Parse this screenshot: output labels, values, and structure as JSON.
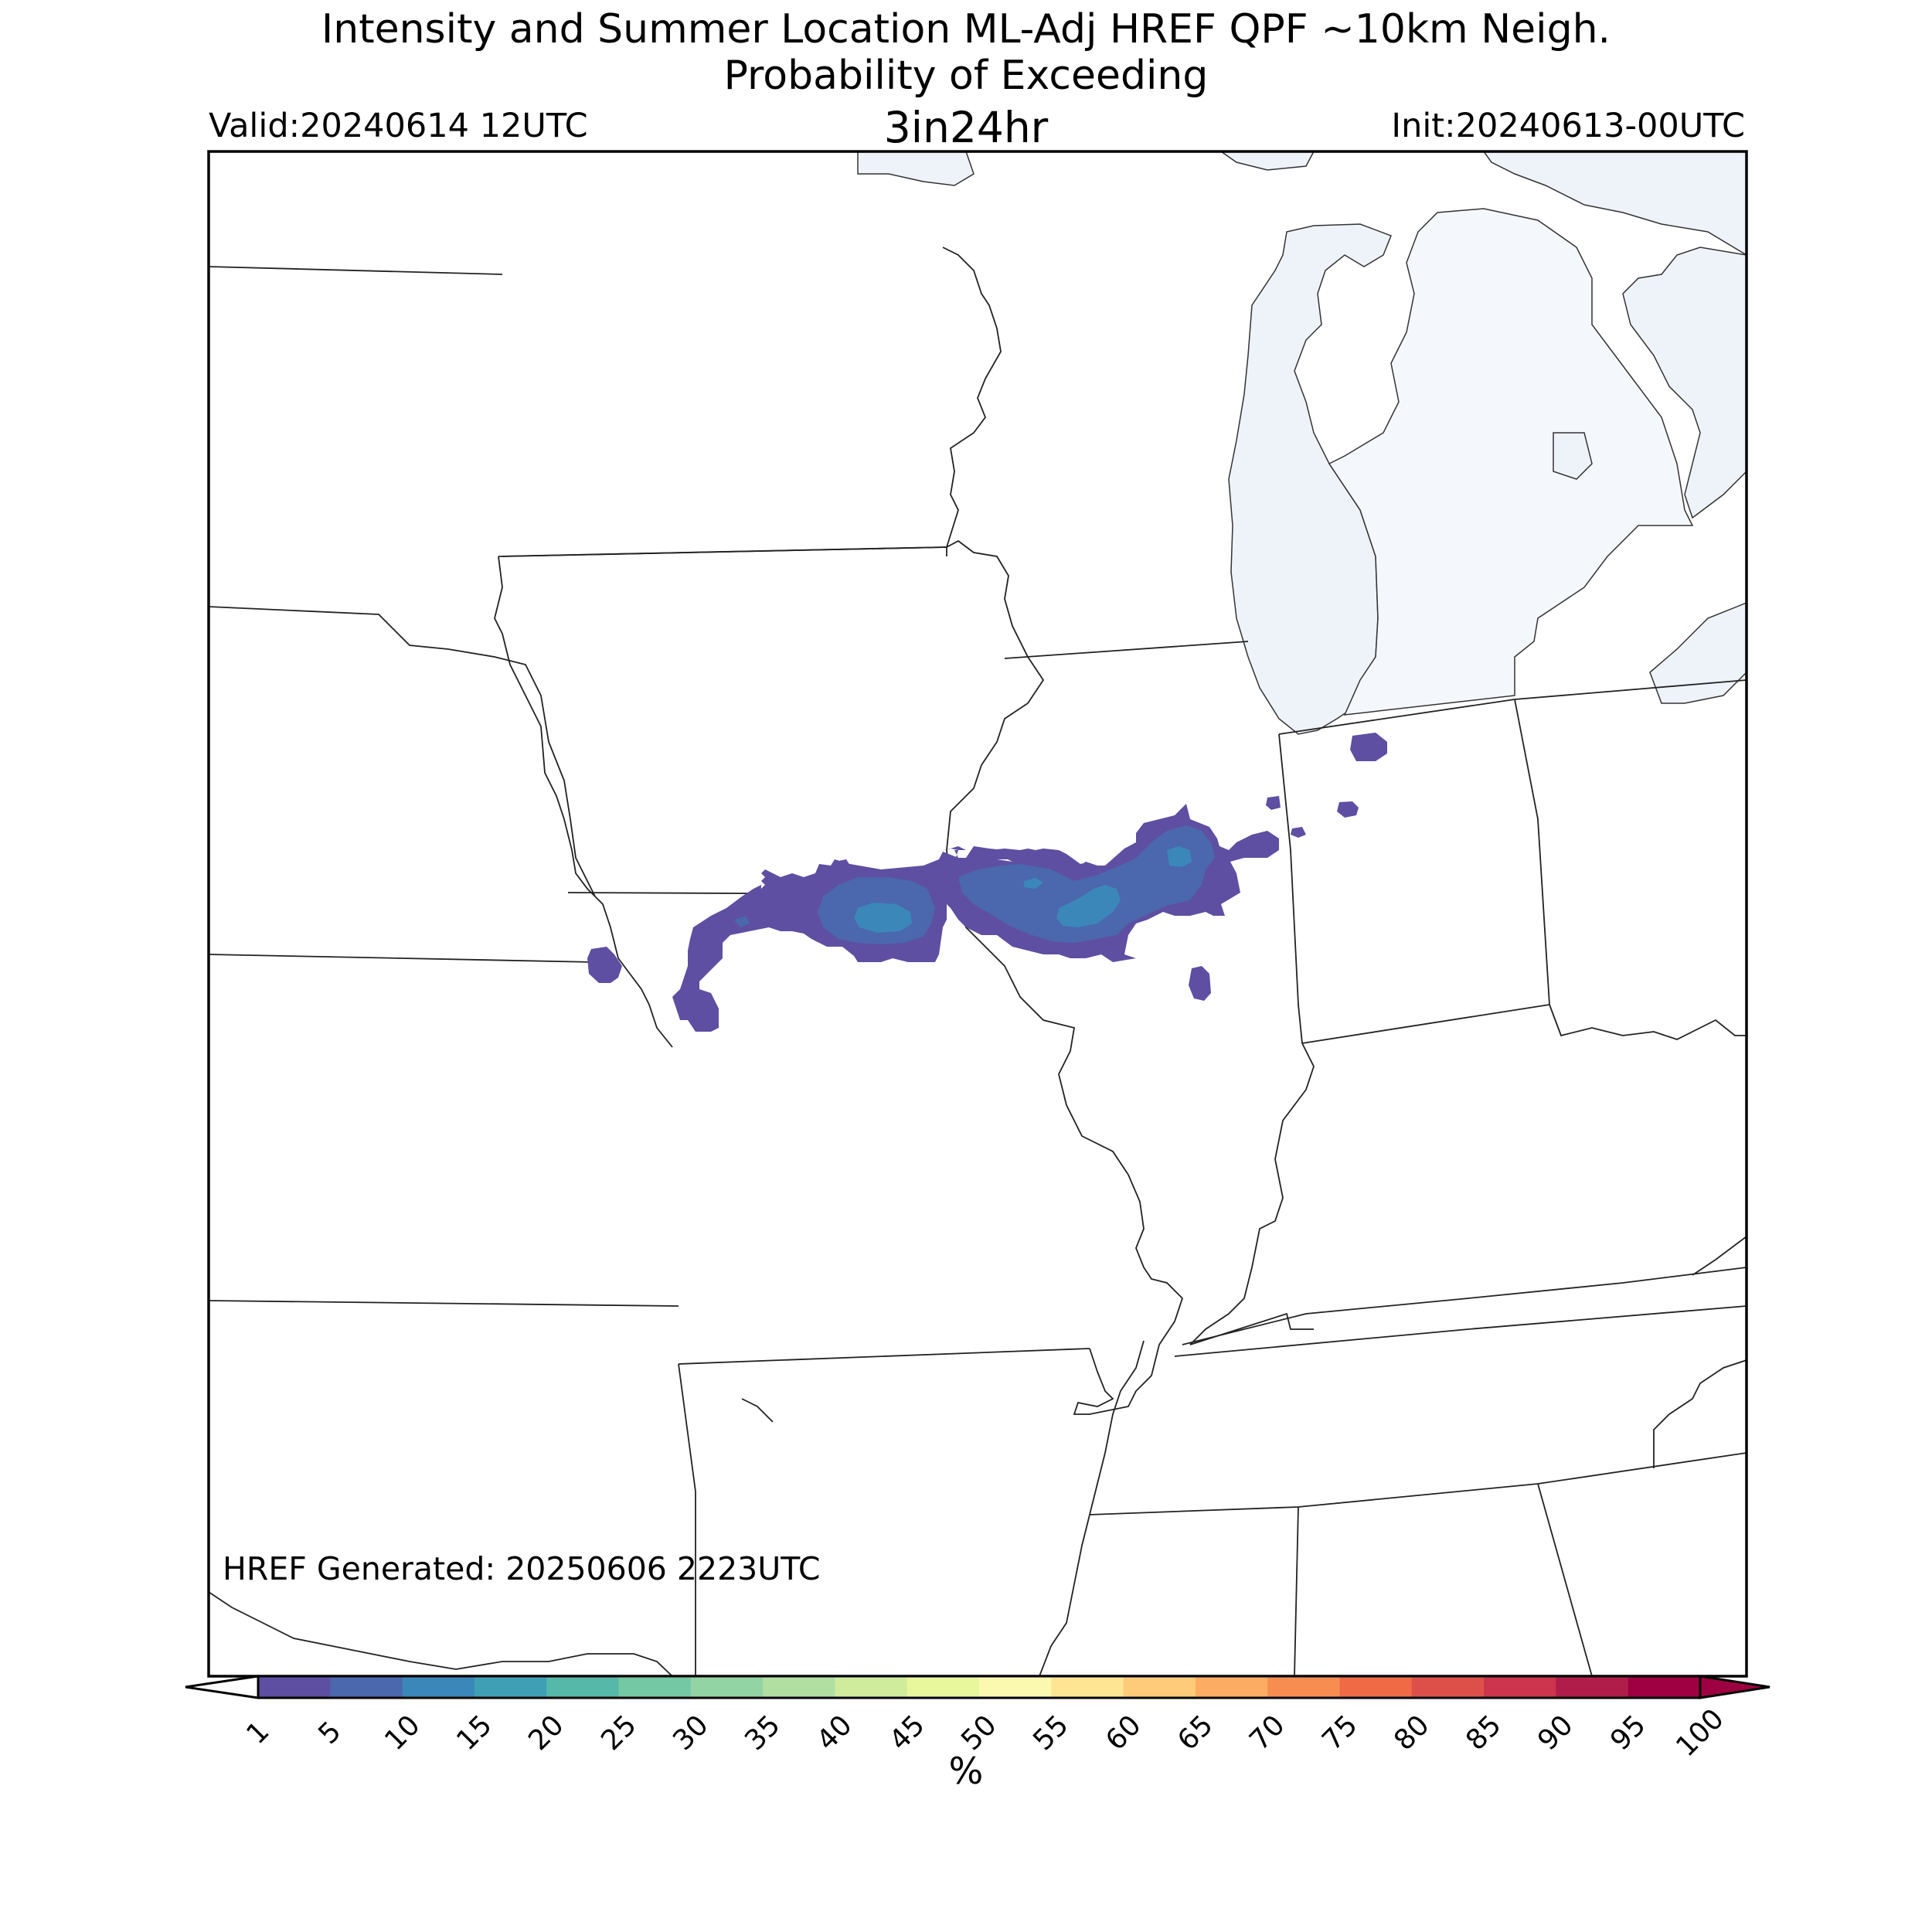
{
  "header": {
    "title_line1": "Intensity and Summer Location ML-Adj HREF QPF ~10km Neigh.",
    "title_line2": "Probability of Exceeding",
    "threshold": "3in24hr",
    "valid": "Valid:20240614 12UTC",
    "init": "Init:20240613-00UTC"
  },
  "map": {
    "generated": "HREF Generated: 20250606 2223UTC",
    "water_color": "#eef3fa",
    "border_color": "#222222",
    "prob_colors": {
      "1-5": "#5e4fa2",
      "5-10": "#4b67ad",
      "10-15": "#3b87b9"
    }
  },
  "colorbar": {
    "label": "%",
    "ticks": [
      "1",
      "5",
      "10",
      "15",
      "20",
      "25",
      "30",
      "35",
      "40",
      "45",
      "50",
      "55",
      "60",
      "65",
      "70",
      "75",
      "80",
      "85",
      "90",
      "95",
      "100"
    ],
    "colors": [
      "#5e4fa2",
      "#4b67ad",
      "#3b87b9",
      "#3fa0b5",
      "#55b8a9",
      "#74c8a4",
      "#93d4a4",
      "#b1dfa2",
      "#cfec9d",
      "#e8f69c",
      "#fbf8b0",
      "#fee593",
      "#fdcb7a",
      "#fcac63",
      "#f88d52",
      "#ef6a45",
      "#dd5049",
      "#cb354d",
      "#b01d4b",
      "#9e0142"
    ]
  }
}
